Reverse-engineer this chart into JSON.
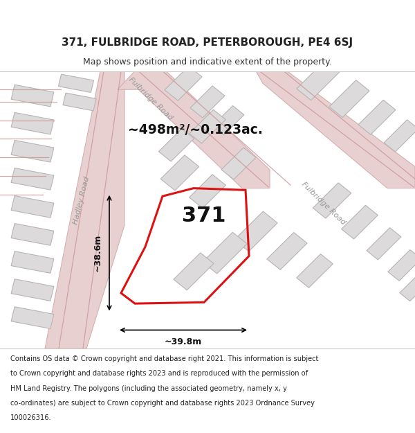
{
  "title_line1": "371, FULBRIDGE ROAD, PETERBOROUGH, PE4 6SJ",
  "title_line2": "Map shows position and indicative extent of the property.",
  "footer_lines": [
    "Contains OS data © Crown copyright and database right 2021. This information is subject",
    "to Crown copyright and database rights 2023 and is reproduced with the permission of",
    "HM Land Registry. The polygons (including the associated geometry, namely x, y",
    "co-ordinates) are subject to Crown copyright and database rights 2023 Ordnance Survey",
    "100026316."
  ],
  "area_text": "~498m²/~0.123ac.",
  "property_number": "371",
  "dim_width": "~39.8m",
  "dim_height": "~38.6m",
  "map_bg": "#eeecea",
  "road_fill": "#e8d0d0",
  "road_edge": "#d4b0b0",
  "building_fill": "#dcdada",
  "building_edge": "#b8b4b4",
  "road_line_color": "#cc9999",
  "property_edge": "#dd1111",
  "road_label_color": "#999999",
  "text_color": "#111111",
  "road_label_fulbridge_top": "Fulbridge Road",
  "road_label_fulbridge_right": "Fulbridge Road",
  "road_label_hadley": "Hadley Road"
}
